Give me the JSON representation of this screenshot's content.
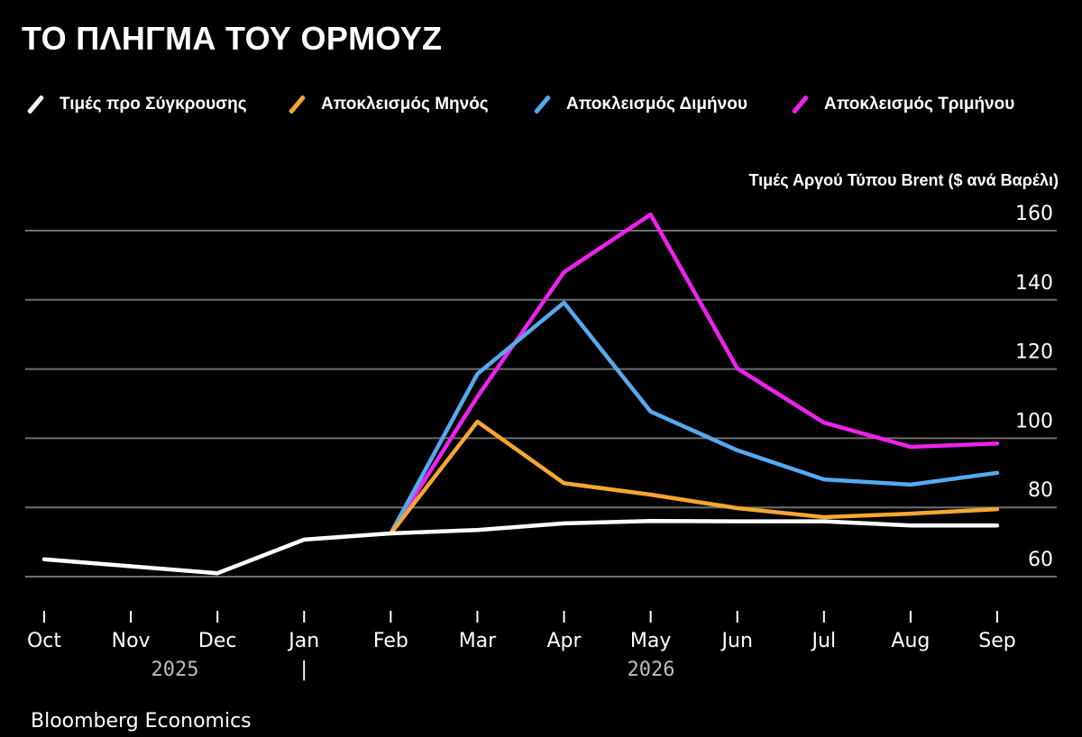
{
  "chart_data": {
    "type": "line",
    "title": "ΤΟ ΠΛΗΓΜΑ ΤΟΥ ΟΡΜΟΥΖ",
    "ylabel": "Τιμές Αργού Τύπου Brent ($ ανά Βαρέλι)",
    "xlabel": "",
    "ylim": [
      50,
      170
    ],
    "yticks": [
      60,
      80,
      100,
      120,
      140,
      160
    ],
    "grid": true,
    "legend_position": "top",
    "categories": [
      "Oct",
      "Nov",
      "Dec",
      "Jan",
      "Feb",
      "Mar",
      "Apr",
      "May",
      "Jun",
      "Jul",
      "Aug",
      "Sep"
    ],
    "year_labels": [
      {
        "label": "2025",
        "under": "Nov"
      },
      {
        "label": "2026",
        "under": "May"
      }
    ],
    "year_divider_at": "Jan",
    "series": [
      {
        "name": "Τιμές προ Σύγκρουσης",
        "color": "#ffffff",
        "values": [
          65,
          63,
          61,
          70.7,
          72.5,
          73.5,
          75.4,
          76.1,
          76,
          76,
          74.8,
          74.8
        ]
      },
      {
        "name": "Αποκλεισμός Μηνός",
        "color": "#f5a732",
        "values": [
          null,
          null,
          null,
          null,
          72.5,
          104.8,
          87,
          83.7,
          79.8,
          77.2,
          78.2,
          79.5
        ]
      },
      {
        "name": "Αποκλεισμός Διμήνου",
        "color": "#55aaee",
        "values": [
          null,
          null,
          null,
          null,
          72.5,
          118.6,
          139.2,
          107.7,
          96.5,
          88.1,
          86.6,
          90
        ]
      },
      {
        "name": "Αποκλεισμός Τριμήνου",
        "color": "#ee22ee",
        "values": [
          null,
          null,
          null,
          null,
          72.5,
          112,
          148,
          164.7,
          120.2,
          104.5,
          97.5,
          98.5
        ]
      }
    ]
  },
  "header": {
    "title": "ΤΟ ΠΛΗΓΜΑ ΤΟΥ ΟΡΜΟΥΖ"
  },
  "axis": {
    "ylabel": "Τιμές Αργού Τύπου Brent ($ ανά Βαρέλι)",
    "year_divider": "|"
  },
  "footer": {
    "source": "Bloomberg Economics"
  },
  "colors": {
    "background": "#000000",
    "grid": "#6e6e6e"
  }
}
